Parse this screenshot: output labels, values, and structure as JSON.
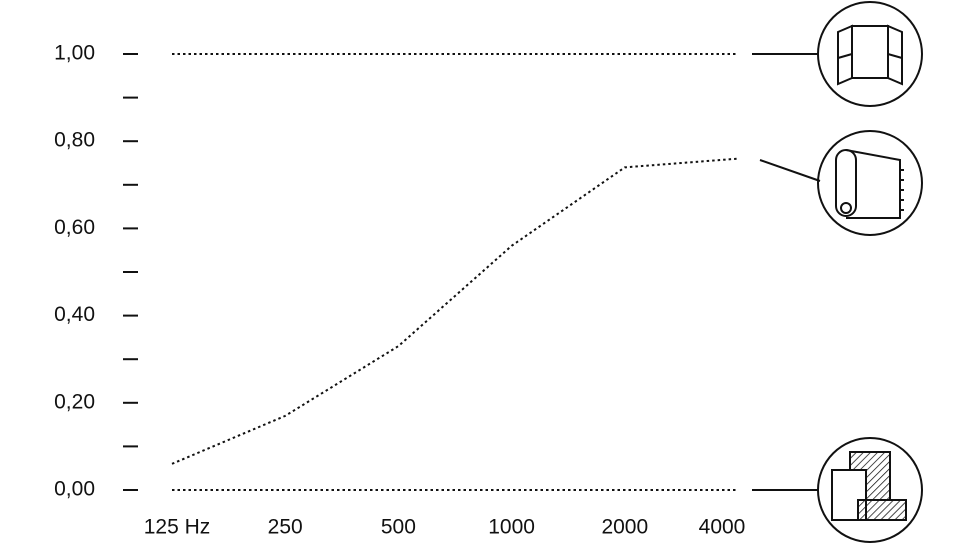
{
  "chart_data": {
    "type": "line",
    "categories": [
      "125 Hz",
      "250",
      "500",
      "1000",
      "2000",
      "4000"
    ],
    "series": [
      {
        "color": "#111111",
        "values": [
          1,
          1,
          1,
          1,
          1,
          1
        ]
      },
      {
        "color": "#111111",
        "values": [
          0.06,
          0.17,
          0.33,
          0.56,
          0.74,
          0.76
        ]
      },
      {
        "color": "#111111",
        "values": [
          0,
          0,
          0,
          0,
          0,
          0
        ]
      }
    ],
    "ylim": [
      0,
      1
    ],
    "yticks": [
      {
        "value": 0,
        "label": "0,00"
      },
      {
        "value": 0.2,
        "label": "0,20"
      },
      {
        "value": 0.4,
        "label": "0,40"
      },
      {
        "value": 0.6,
        "label": "0,60"
      },
      {
        "value": 0.8,
        "label": "0,80"
      },
      {
        "value": 1,
        "label": "1,00"
      }
    ],
    "yminorticks": [
      0.1,
      0.3,
      0.5,
      0.7,
      0.9
    ],
    "line_style": "dotted"
  }
}
